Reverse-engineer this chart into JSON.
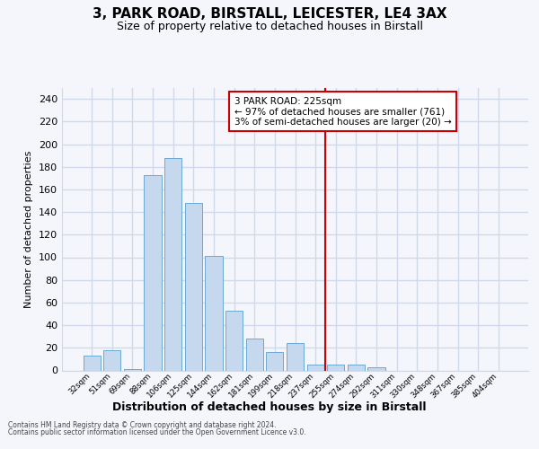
{
  "title": "3, PARK ROAD, BIRSTALL, LEICESTER, LE4 3AX",
  "subtitle": "Size of property relative to detached houses in Birstall",
  "xlabel": "Distribution of detached houses by size in Birstall",
  "ylabel": "Number of detached properties",
  "footer1": "Contains HM Land Registry data © Crown copyright and database right 2024.",
  "footer2": "Contains public sector information licensed under the Open Government Licence v3.0.",
  "annotation_title": "3 PARK ROAD: 225sqm",
  "annotation_line1": "← 97% of detached houses are smaller (761)",
  "annotation_line2": "3% of semi-detached houses are larger (20) →",
  "bar_color": "#c5d8ed",
  "bar_edge_color": "#6aaad4",
  "vline_color": "#cc0000",
  "categories": [
    "32sqm",
    "51sqm",
    "69sqm",
    "88sqm",
    "106sqm",
    "125sqm",
    "144sqm",
    "162sqm",
    "181sqm",
    "199sqm",
    "218sqm",
    "237sqm",
    "255sqm",
    "274sqm",
    "292sqm",
    "311sqm",
    "330sqm",
    "348sqm",
    "367sqm",
    "385sqm",
    "404sqm"
  ],
  "values": [
    13,
    18,
    1,
    173,
    188,
    148,
    101,
    53,
    28,
    16,
    24,
    5,
    5,
    5,
    3,
    0,
    0,
    0,
    0,
    0,
    0
  ],
  "ylim": [
    0,
    250
  ],
  "yticks": [
    0,
    20,
    40,
    60,
    80,
    100,
    120,
    140,
    160,
    180,
    200,
    220,
    240
  ],
  "bg_color": "#f4f6fc",
  "grid_color": "#d0d8ec",
  "vline_pos": 11.5
}
